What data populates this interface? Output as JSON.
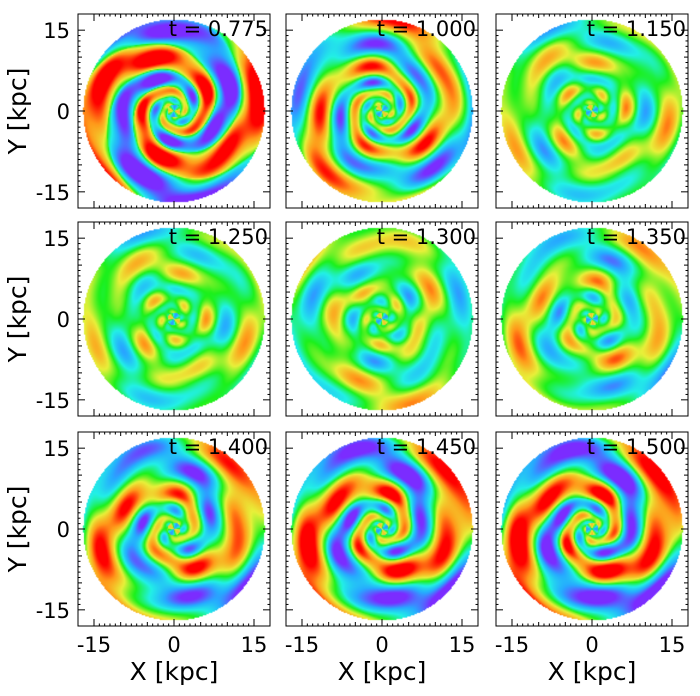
{
  "chart_data": {
    "type": "heatmap",
    "xlabel": "X [kpc]",
    "ylabel": "Y [kpc]",
    "xlim": [
      -18,
      18
    ],
    "ylim": [
      -18,
      18
    ],
    "x_ticks": [
      -15,
      0,
      15
    ],
    "y_ticks": [
      15,
      0,
      -15
    ],
    "x_tick_labels": [
      "-15",
      "0",
      "15"
    ],
    "y_tick_labels": [
      "15",
      "0",
      "-15"
    ],
    "disk_radius_kpc": 17,
    "colormap": [
      "#7b2cff",
      "#26aaff",
      "#22f0e6",
      "#1bf01b",
      "#e8f03a",
      "#ff9a1a",
      "#ff0000"
    ],
    "panels": [
      {
        "time_label": "t = 0.775",
        "t": 0.775,
        "arms": 2,
        "arm_strength": 1.0,
        "arm_width": 0.9,
        "pitch": 1.15,
        "phase": 0.3
      },
      {
        "time_label": "t = 1.000",
        "t": 1.0,
        "arms": 2,
        "arm_strength": 0.7,
        "arm_width": 0.5,
        "pitch": 1.35,
        "phase": 1.6
      },
      {
        "time_label": "t = 1.150",
        "t": 1.15,
        "arms": 2,
        "arm_strength": 0.35,
        "arm_width": 0.3,
        "pitch": 1.3,
        "phase": 2.4
      },
      {
        "time_label": "t = 1.250",
        "t": 1.25,
        "arms": 2,
        "arm_strength": 0.3,
        "arm_width": 0.3,
        "pitch": 1.2,
        "phase": 0.9
      },
      {
        "time_label": "t = 1.300",
        "t": 1.3,
        "arms": 2,
        "arm_strength": 0.35,
        "arm_width": 0.3,
        "pitch": 1.1,
        "phase": 2.0
      },
      {
        "time_label": "t = 1.350",
        "t": 1.35,
        "arms": 2,
        "arm_strength": 0.45,
        "arm_width": 0.35,
        "pitch": 1.0,
        "phase": 2.8
      },
      {
        "time_label": "t = 1.400",
        "t": 1.4,
        "arms": 2,
        "arm_strength": 0.75,
        "arm_width": 0.45,
        "pitch": 0.9,
        "phase": 1.2
      },
      {
        "time_label": "t = 1.450",
        "t": 1.45,
        "arms": 2,
        "arm_strength": 0.9,
        "arm_width": 0.55,
        "pitch": 0.95,
        "phase": 2.3
      },
      {
        "time_label": "t = 1.500",
        "t": 1.5,
        "arms": 2,
        "arm_strength": 0.95,
        "arm_width": 0.6,
        "pitch": 1.0,
        "phase": 3.1
      }
    ]
  }
}
